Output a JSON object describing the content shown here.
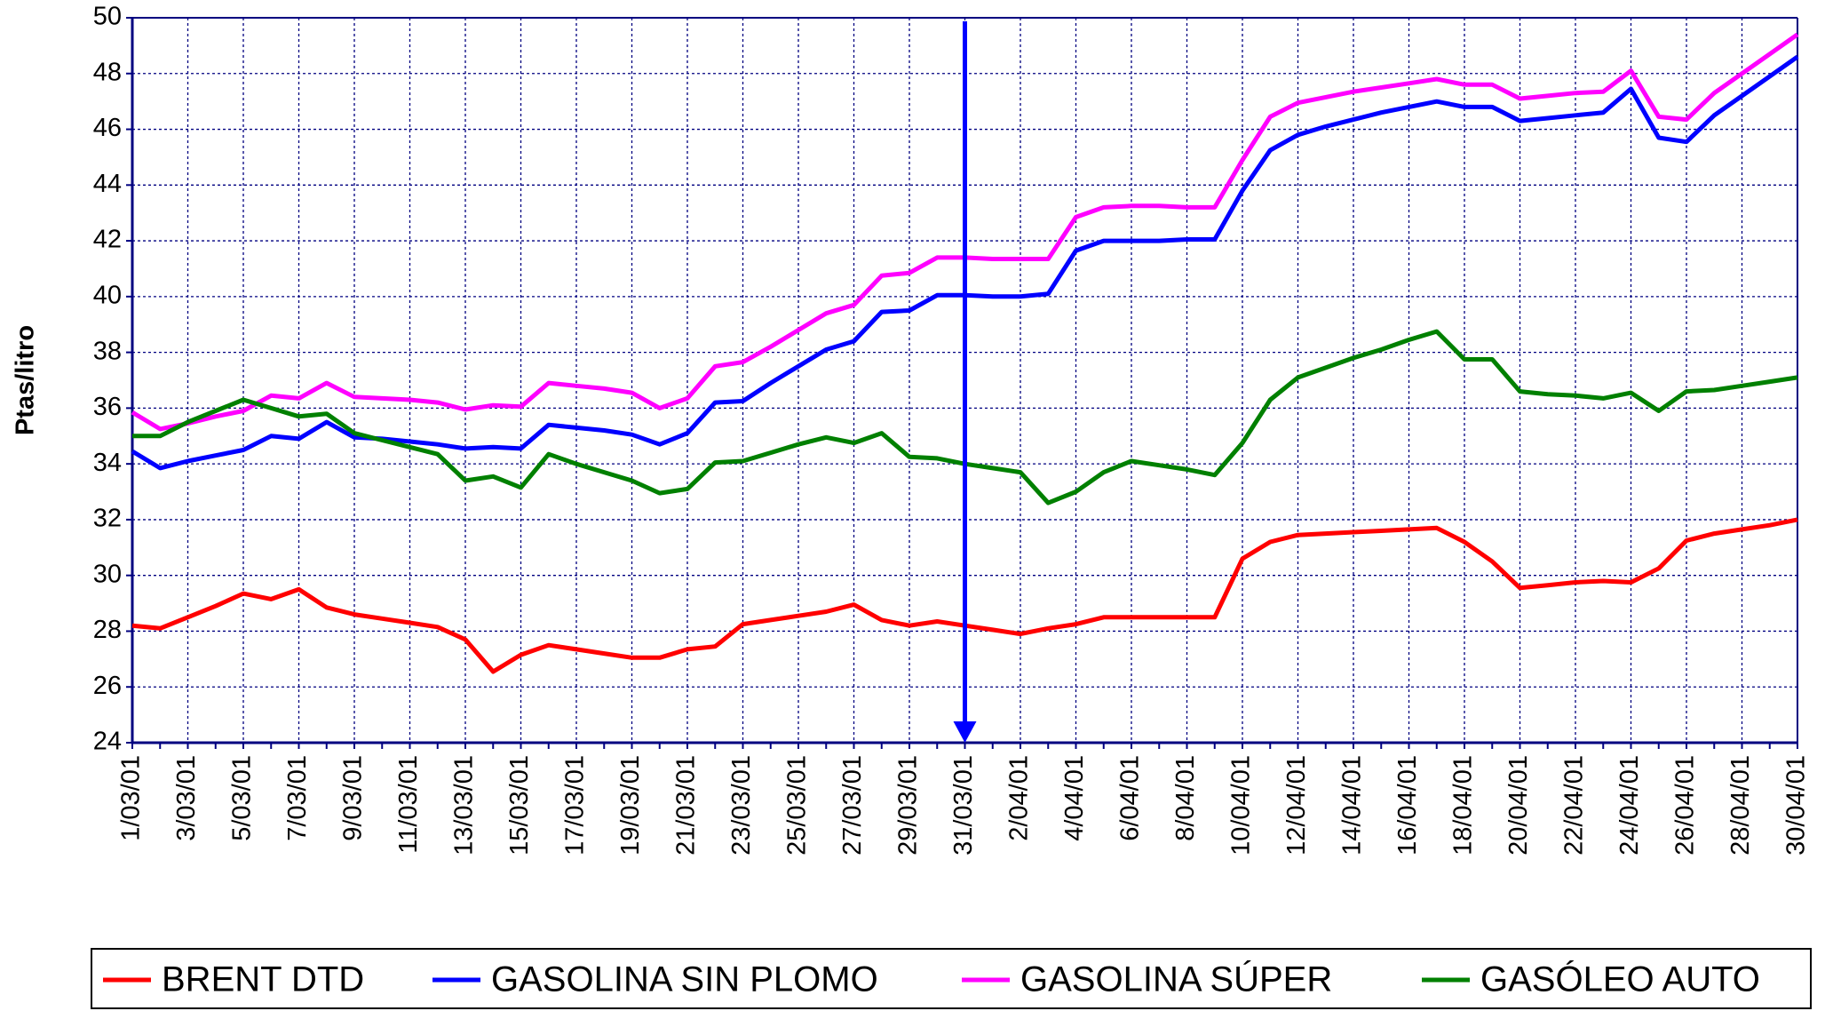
{
  "chart_data": {
    "type": "line",
    "y_label": "Ptas/litro",
    "categories": [
      "1/03/01",
      null,
      "3/03/01",
      null,
      "5/03/01",
      null,
      "7/03/01",
      null,
      "9/03/01",
      null,
      "11/03/01",
      null,
      "13/03/01",
      null,
      "15/03/01",
      null,
      "17/03/01",
      null,
      "19/03/01",
      null,
      "21/03/01",
      null,
      "23/03/01",
      null,
      "25/03/01",
      null,
      "27/03/01",
      null,
      "29/03/01",
      null,
      "31/03/01",
      null,
      "2/04/01",
      null,
      "4/04/01",
      null,
      "6/04/01",
      null,
      "8/04/01",
      null,
      "10/04/01",
      null,
      "12/04/01",
      null,
      "14/04/01",
      null,
      "16/04/01",
      null,
      "18/04/01",
      null,
      "20/04/01",
      null,
      "22/04/01",
      null,
      "24/04/01",
      null,
      "26/04/01",
      null,
      "28/04/01",
      null,
      "30/04/01"
    ],
    "series": [
      {
        "name": "BRENT DTD",
        "color": "#ff0000",
        "values": [
          28.2,
          28.1,
          28.5,
          28.9,
          29.35,
          29.15,
          29.5,
          28.85,
          28.6,
          28.45,
          28.3,
          28.15,
          27.7,
          26.55,
          27.15,
          27.5,
          27.35,
          27.2,
          27.05,
          27.05,
          27.35,
          27.45,
          28.25,
          28.4,
          28.55,
          28.7,
          28.95,
          28.4,
          28.2,
          28.35,
          28.2,
          28.05,
          27.9,
          28.1,
          28.25,
          28.5,
          28.5,
          28.5,
          28.5,
          28.5,
          30.6,
          31.2,
          31.45,
          31.5,
          31.55,
          31.6,
          31.65,
          31.7,
          31.2,
          30.5,
          29.55,
          29.65,
          29.75,
          29.8,
          29.75,
          30.25,
          31.25,
          31.5,
          31.65,
          31.8,
          32.0
        ]
      },
      {
        "name": "GASOLINA SIN PLOMO",
        "color": "#0000ff",
        "values": [
          34.45,
          33.85,
          34.1,
          34.3,
          34.5,
          35.0,
          34.9,
          35.5,
          34.95,
          34.9,
          34.8,
          34.7,
          34.55,
          34.6,
          34.55,
          35.4,
          35.3,
          35.2,
          35.05,
          34.7,
          35.1,
          36.2,
          36.25,
          36.9,
          37.5,
          38.1,
          38.4,
          39.45,
          39.5,
          40.05,
          40.05,
          40.0,
          40.0,
          40.1,
          41.65,
          42.0,
          42.0,
          42.0,
          42.05,
          42.05,
          43.8,
          45.25,
          45.8,
          46.1,
          46.35,
          46.6,
          46.8,
          47.0,
          46.8,
          46.8,
          46.3,
          46.4,
          46.5,
          46.6,
          47.45,
          45.7,
          45.55,
          46.5,
          47.2,
          47.9,
          48.6
        ]
      },
      {
        "name": "GASOLINA SÚPER",
        "color": "#ff00ff",
        "values": [
          35.85,
          35.25,
          35.45,
          35.7,
          35.9,
          36.45,
          36.35,
          36.9,
          36.4,
          36.35,
          36.3,
          36.2,
          35.95,
          36.1,
          36.05,
          36.9,
          36.8,
          36.7,
          36.55,
          36.0,
          36.35,
          37.5,
          37.65,
          38.2,
          38.8,
          39.4,
          39.7,
          40.75,
          40.85,
          41.4,
          41.4,
          41.35,
          41.35,
          41.35,
          42.85,
          43.2,
          43.25,
          43.25,
          43.2,
          43.2,
          44.9,
          46.45,
          46.95,
          47.15,
          47.35,
          47.5,
          47.65,
          47.8,
          47.6,
          47.6,
          47.1,
          47.2,
          47.3,
          47.35,
          48.1,
          46.45,
          46.35,
          47.3,
          48.0,
          48.7,
          49.4
        ]
      },
      {
        "name": "GASÓLEO AUTO",
        "color": "#008000",
        "values": [
          35.0,
          35.0,
          35.5,
          35.9,
          36.3,
          36.0,
          35.7,
          35.8,
          35.1,
          34.85,
          34.6,
          34.35,
          33.4,
          33.55,
          33.15,
          34.35,
          34.0,
          33.7,
          33.4,
          32.95,
          33.1,
          34.05,
          34.1,
          34.4,
          34.7,
          34.95,
          34.75,
          35.1,
          34.25,
          34.2,
          34.0,
          33.85,
          33.7,
          32.6,
          33.0,
          33.7,
          34.1,
          33.95,
          33.8,
          33.6,
          34.75,
          36.3,
          37.1,
          37.45,
          37.8,
          38.1,
          38.45,
          38.75,
          37.75,
          37.75,
          36.6,
          36.5,
          36.45,
          36.35,
          36.55,
          35.9,
          36.6,
          36.65,
          36.8,
          36.95,
          37.1
        ]
      }
    ],
    "ylim": [
      24,
      50
    ],
    "yticks": [
      24,
      26,
      28,
      30,
      32,
      34,
      36,
      38,
      40,
      42,
      44,
      46,
      48,
      50
    ],
    "grid": true,
    "legend": "bottom"
  }
}
